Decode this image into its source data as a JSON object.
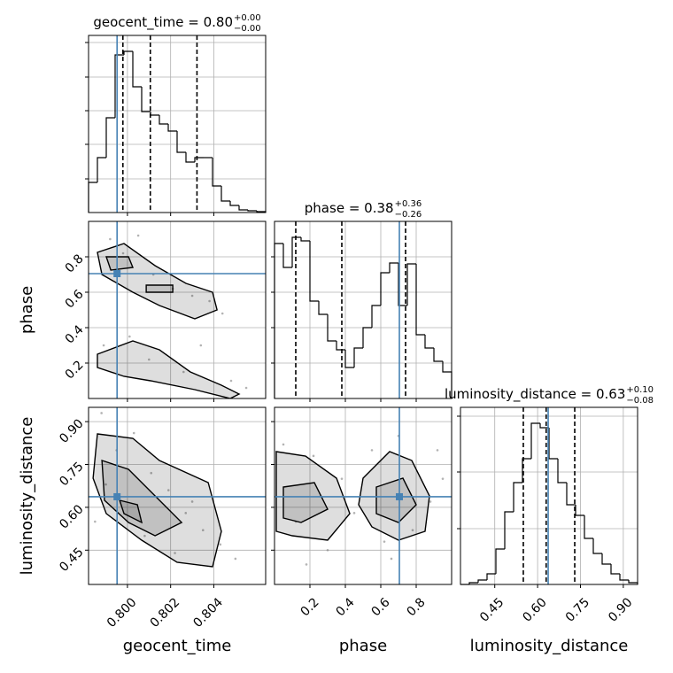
{
  "chart_data": {
    "type": "corner",
    "grid": true,
    "colors": {
      "hist": "#000000",
      "quantile": "#000000",
      "truth": "#4682b4",
      "grid": "#b0b0b0",
      "points": "#808080",
      "contour": "#000000"
    },
    "parameters": [
      {
        "label": "geocent_time",
        "title": "geocent_time = 0.80",
        "title_upper": "+0.00",
        "title_lower": "−0.00",
        "lim": [
          0.7982,
          0.8064
        ],
        "ticks": [
          {
            "value": 0.8,
            "label": "0.800"
          },
          0.802,
          0.804
        ],
        "bins": [
          0.7982,
          0.79861,
          0.79902,
          0.79943,
          0.79984,
          0.80025,
          0.80066,
          0.80107,
          0.80148,
          0.80189,
          0.8023,
          0.80271,
          0.80312,
          0.80353,
          0.80394,
          0.80435,
          0.80476,
          0.80517,
          0.80558,
          0.80599,
          0.8064
        ],
        "counts": [
          34,
          62,
          107,
          178,
          182,
          142,
          114,
          110,
          100,
          92,
          68,
          57,
          62,
          62,
          30,
          13,
          8,
          3,
          2,
          1
        ],
        "hist_ylim": [
          0,
          200
        ],
        "hist_yticks": [
          38,
          77,
          115,
          153,
          192
        ],
        "quantiles": [
          0.79979,
          0.80106,
          0.80322
        ],
        "truth": 0.79952
      },
      {
        "label": "phase",
        "title": "phase = 0.38",
        "title_upper": "+0.36",
        "title_lower": "−0.26",
        "lim": [
          0.0,
          1.0
        ],
        "ticks": [
          0.2,
          0.4,
          0.6,
          0.8
        ],
        "bins": [
          0.0,
          0.05,
          0.1,
          0.15,
          0.2,
          0.25,
          0.3,
          0.35,
          0.4,
          0.45,
          0.5,
          0.55,
          0.6,
          0.65,
          0.7,
          0.75,
          0.8,
          0.85,
          0.9,
          0.95,
          1.0
        ],
        "counts": [
          175,
          148,
          182,
          178,
          110,
          95,
          65,
          55,
          35,
          57,
          80,
          105,
          142,
          153,
          105,
          152,
          72,
          57,
          42,
          30
        ],
        "hist_ylim": [
          0,
          200
        ],
        "hist_yticks": [
          40,
          80,
          120,
          160
        ],
        "quantiles": [
          0.12,
          0.38,
          0.74
        ],
        "truth": 0.705
      },
      {
        "label": "luminosity_distance",
        "title": "luminosity_distance = 0.63",
        "title_upper": "+0.10",
        "title_lower": "−0.08",
        "lim": [
          0.33,
          0.95
        ],
        "ticks": [
          0.45,
          {
            "value": 0.6,
            "label": "0.60"
          },
          0.75,
          {
            "value": 0.9,
            "label": "0.90"
          }
        ],
        "bins": [
          0.33,
          0.361,
          0.392,
          0.423,
          0.454,
          0.485,
          0.516,
          0.547,
          0.578,
          0.609,
          0.64,
          0.671,
          0.702,
          0.733,
          0.764,
          0.795,
          0.826,
          0.857,
          0.888,
          0.919,
          0.95
        ],
        "counts": [
          0,
          2,
          5,
          12,
          40,
          82,
          115,
          142,
          182,
          177,
          142,
          115,
          90,
          78,
          52,
          35,
          23,
          12,
          5,
          2
        ],
        "hist_ylim": [
          0,
          200
        ],
        "hist_yticks": [
          63,
          127,
          190
        ],
        "quantiles": [
          0.55,
          0.63,
          0.73
        ],
        "truth": 0.637
      }
    ],
    "pairs": [
      {
        "x": 0,
        "y": 1,
        "points_x": [
          0.7992,
          0.7998,
          0.8005,
          0.8012,
          0.8021,
          0.803,
          0.8038,
          0.8044,
          0.8001,
          0.801,
          0.8026,
          0.8048,
          0.7989,
          0.8034,
          0.8055
        ],
        "points_y": [
          0.9,
          0.82,
          0.92,
          0.7,
          0.62,
          0.58,
          0.55,
          0.48,
          0.35,
          0.22,
          0.15,
          0.1,
          0.3,
          0.3,
          0.06
        ],
        "contours": [
          {
            "x": [
              0.79861,
              0.79984,
              0.80128,
              0.80271,
              0.80394,
              0.80415,
              0.80312,
              0.80148,
              0.80025,
              0.79882
            ],
            "y": [
              0.825,
              0.875,
              0.75,
              0.65,
              0.6,
              0.5,
              0.45,
              0.525,
              0.6,
              0.7
            ]
          },
          {
            "x": [
              0.79861,
              0.80025,
              0.80148,
              0.80291,
              0.80435,
              0.80517,
              0.80476,
              0.80312,
              0.80107,
              0.79984,
              0.79861
            ],
            "y": [
              0.25,
              0.325,
              0.275,
              0.15,
              0.075,
              0.025,
              0.0,
              0.05,
              0.1,
              0.125,
              0.175
            ]
          },
          {
            "x": [
              0.79902,
              0.80005,
              0.80025,
              0.79923
            ],
            "y": [
              0.8,
              0.8,
              0.74,
              0.725
            ]
          },
          {
            "x": [
              0.80087,
              0.8021,
              0.8021,
              0.80087
            ],
            "y": [
              0.64,
              0.64,
              0.6,
              0.6
            ]
          }
        ]
      },
      {
        "x": 0,
        "y": 2,
        "points_x": [
          0.7988,
          0.7995,
          0.8003,
          0.8011,
          0.8019,
          0.8027,
          0.8035,
          0.8043,
          0.805,
          0.799,
          0.8008,
          0.803,
          0.8022,
          0.7985
        ],
        "points_y": [
          0.93,
          0.8,
          0.86,
          0.72,
          0.66,
          0.58,
          0.52,
          0.47,
          0.42,
          0.68,
          0.5,
          0.62,
          0.44,
          0.55
        ],
        "contours": [
          {
            "x": [
              0.79861,
              0.80025,
              0.80148,
              0.80374,
              0.80435,
              0.80394,
              0.8023,
              0.80066,
              0.79902,
              0.79841
            ],
            "y": [
              0.857,
              0.8415,
              0.764,
              0.6865,
              0.516,
              0.392,
              0.4075,
              0.485,
              0.578,
              0.702
            ]
          },
          {
            "x": [
              0.79882,
              0.80005,
              0.80128,
              0.80251,
              0.80128,
              0.80005,
              0.79894
            ],
            "y": [
              0.764,
              0.733,
              0.64,
              0.547,
              0.5005,
              0.547,
              0.6245
            ]
          },
          {
            "x": [
              0.79964,
              0.80046,
              0.80066,
              0.79984
            ],
            "y": [
              0.6245,
              0.609,
              0.547,
              0.578
            ]
          }
        ]
      },
      {
        "x": 1,
        "y": 2,
        "points_x": [
          0.05,
          0.12,
          0.22,
          0.3,
          0.38,
          0.45,
          0.55,
          0.62,
          0.7,
          0.78,
          0.88,
          0.95,
          0.18,
          0.66,
          0.92
        ],
        "points_y": [
          0.82,
          0.55,
          0.78,
          0.45,
          0.7,
          0.58,
          0.8,
          0.48,
          0.85,
          0.52,
          0.62,
          0.7,
          0.4,
          0.42,
          0.8
        ],
        "contours": [
          {
            "x": [
              0.01,
              0.175,
              0.35,
              0.425,
              0.3,
              0.1,
              0.01
            ],
            "y": [
              0.795,
              0.7795,
              0.702,
              0.578,
              0.485,
              0.5005,
              0.516
            ]
          },
          {
            "x": [
              0.5,
              0.65,
              0.775,
              0.875,
              0.85,
              0.7,
              0.55,
              0.475
            ],
            "y": [
              0.702,
              0.795,
              0.764,
              0.64,
              0.516,
              0.485,
              0.5315,
              0.609
            ]
          },
          {
            "x": [
              0.05,
              0.225,
              0.3,
              0.15,
              0.05
            ],
            "y": [
              0.671,
              0.6865,
              0.5935,
              0.547,
              0.5625
            ]
          },
          {
            "x": [
              0.575,
              0.725,
              0.8,
              0.7,
              0.575
            ],
            "y": [
              0.671,
              0.702,
              0.609,
              0.547,
              0.578
            ]
          }
        ]
      }
    ]
  }
}
